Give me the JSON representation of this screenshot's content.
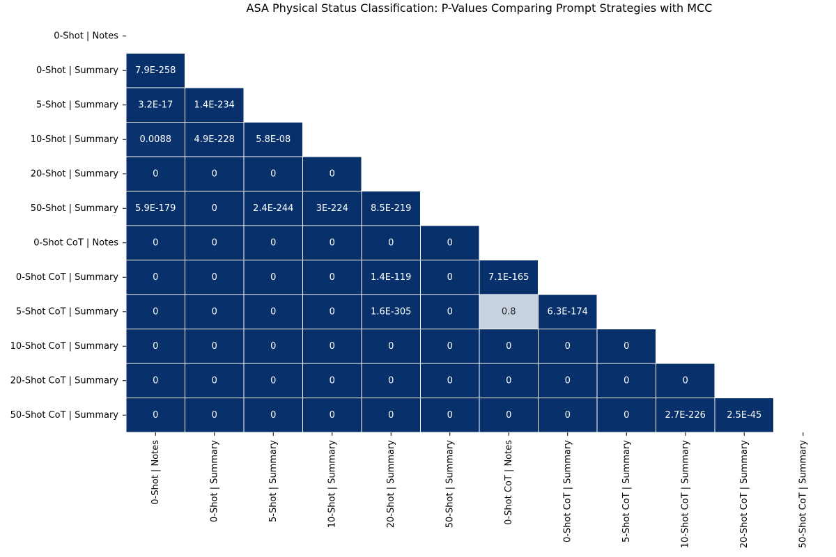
{
  "chart_data": {
    "type": "heatmap",
    "title": "ASA Physical Status Classification: P-Values Comparing Prompt Strategies with MCC",
    "xlabel": "",
    "ylabel": "",
    "grid": false,
    "legend": "none",
    "mask": "lower-triangle",
    "categories": [
      "0-Shot | Notes",
      "0-Shot | Summary",
      "5-Shot | Summary",
      "10-Shot | Summary",
      "20-Shot | Summary",
      "50-Shot | Summary",
      "0-Shot CoT | Notes",
      "0-Shot CoT | Summary",
      "5-Shot CoT | Summary",
      "10-Shot CoT | Summary",
      "20-Shot CoT | Summary",
      "50-Shot CoT | Summary"
    ],
    "values": [
      [],
      [
        "7.9E-258"
      ],
      [
        "3.2E-17",
        "1.4E-234"
      ],
      [
        "0.0088",
        "4.9E-228",
        "5.8E-08"
      ],
      [
        "0",
        "0",
        "0",
        "0"
      ],
      [
        "5.9E-179",
        "0",
        "2.4E-244",
        "3E-224",
        "8.5E-219"
      ],
      [
        "0",
        "0",
        "0",
        "0",
        "0",
        "0"
      ],
      [
        "0",
        "0",
        "0",
        "0",
        "1.4E-119",
        "0",
        "7.1E-165"
      ],
      [
        "0",
        "0",
        "0",
        "0",
        "1.6E-305",
        "0",
        "0.8",
        "6.3E-174"
      ],
      [
        "0",
        "0",
        "0",
        "0",
        "0",
        "0",
        "0",
        "0",
        "0"
      ],
      [
        "0",
        "0",
        "0",
        "0",
        "0",
        "0",
        "0",
        "0",
        "0",
        "0"
      ],
      [
        "0",
        "0",
        "0",
        "0",
        "0",
        "0",
        "0",
        "0",
        "0",
        "2.7E-226",
        "2.5E-45"
      ]
    ],
    "colors": {
      "low": "#08306b",
      "high": "#f7fbff",
      "text_on_dark": "#ffffff",
      "text_on_light": "#262626"
    }
  }
}
